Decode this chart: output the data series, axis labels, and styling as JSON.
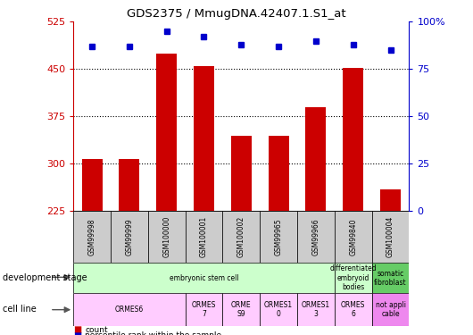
{
  "title": "GDS2375 / MmugDNA.42407.1.S1_at",
  "samples": [
    "GSM99998",
    "GSM99999",
    "GSM100000",
    "GSM100001",
    "GSM100002",
    "GSM99965",
    "GSM99966",
    "GSM99840",
    "GSM100004"
  ],
  "counts": [
    307,
    307,
    475,
    455,
    345,
    345,
    390,
    452,
    260
  ],
  "percentiles": [
    87,
    87,
    95,
    92,
    88,
    87,
    90,
    88,
    85
  ],
  "ylim_left": [
    225,
    525
  ],
  "ylim_right": [
    0,
    100
  ],
  "yticks_left": [
    225,
    300,
    375,
    450,
    525
  ],
  "yticks_right": [
    0,
    25,
    50,
    75,
    100
  ],
  "bar_color": "#cc0000",
  "dot_color": "#0000cc",
  "grid_lines": [
    300,
    375,
    450
  ],
  "development_stage_groups": [
    {
      "label": "embryonic stem cell",
      "start": 0,
      "end": 7,
      "color": "#ccffcc"
    },
    {
      "label": "differentiated\nembryoid\nbodies",
      "start": 7,
      "end": 8,
      "color": "#ccffcc"
    },
    {
      "label": "somatic\nfibroblast",
      "start": 8,
      "end": 9,
      "color": "#66cc66"
    }
  ],
  "cell_line_groups": [
    {
      "label": "ORMES6",
      "start": 0,
      "end": 3,
      "color": "#ffccff"
    },
    {
      "label": "ORMES\n7",
      "start": 3,
      "end": 4,
      "color": "#ffccff"
    },
    {
      "label": "ORME\nS9",
      "start": 4,
      "end": 5,
      "color": "#ffccff"
    },
    {
      "label": "ORMES1\n0",
      "start": 5,
      "end": 6,
      "color": "#ffccff"
    },
    {
      "label": "ORMES1\n3",
      "start": 6,
      "end": 7,
      "color": "#ffccff"
    },
    {
      "label": "ORMES\n6",
      "start": 7,
      "end": 8,
      "color": "#ffccff"
    },
    {
      "label": "not appli\ncable",
      "start": 8,
      "end": 9,
      "color": "#ee88ee"
    }
  ],
  "left_axis_color": "#cc0000",
  "right_axis_color": "#0000cc",
  "sample_box_color": "#cccccc",
  "legend_count_color": "#cc0000",
  "legend_pct_color": "#0000cc"
}
